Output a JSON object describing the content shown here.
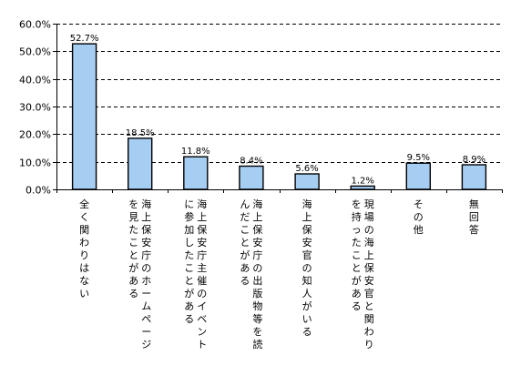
{
  "chart_data": {
    "type": "bar",
    "title": "",
    "xlabel": "",
    "ylabel": "",
    "ylim": [
      0,
      60
    ],
    "y_ticks": [
      "0.0%",
      "10.0%",
      "20.0%",
      "30.0%",
      "40.0%",
      "50.0%",
      "60.0%"
    ],
    "y_tick_values": [
      0,
      10,
      20,
      30,
      40,
      50,
      60
    ],
    "grid": "horizontal dashed",
    "legend": "none",
    "categories": [
      [
        "全く関わりはない"
      ],
      [
        "海上保安庁のホームページ",
        "を見たことがある"
      ],
      [
        "海上保安庁主催のイベント",
        "に参加したことがある"
      ],
      [
        "海上保安庁の出版物等を読",
        "んだことがある"
      ],
      [
        "海上保安官の知人がいる"
      ],
      [
        "現場の海上保安官と関わり",
        "を持ったことがある"
      ],
      [
        "その他"
      ],
      [
        "無回答"
      ]
    ],
    "values": [
      52.7,
      18.5,
      11.8,
      8.4,
      5.6,
      1.2,
      9.5,
      8.9
    ],
    "value_labels": [
      "52.7%",
      "18.5%",
      "11.8%",
      "8.4%",
      "5.6%",
      "1.2%",
      "9.5%",
      "8.9%"
    ],
    "colors": {
      "bar_fill": "#a6cdf2",
      "bar_stroke": "#000000",
      "grid": "#000000",
      "axis": "#000000"
    }
  }
}
